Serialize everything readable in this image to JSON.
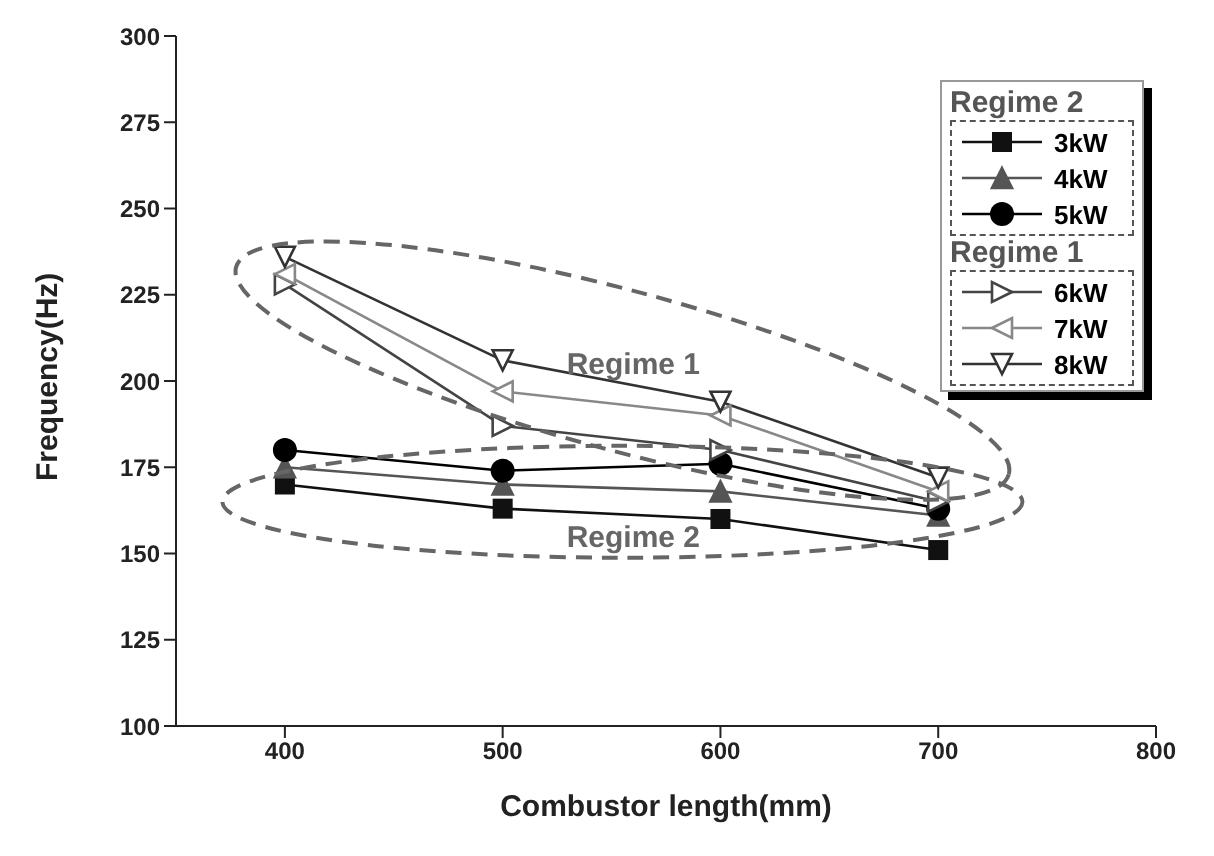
{
  "chart_data": {
    "type": "line",
    "xlabel": "Combustor length(mm)",
    "ylabel": "Frequency(Hz)",
    "x": [
      400,
      500,
      600,
      700
    ],
    "xlim": [
      350,
      800
    ],
    "xticks": [
      400,
      500,
      600,
      700,
      800
    ],
    "ylim": [
      100,
      300
    ],
    "yticks": [
      100,
      125,
      150,
      175,
      200,
      225,
      250,
      275,
      300
    ],
    "series": [
      {
        "name": "3kW",
        "color": "#111111",
        "marker": "square",
        "values": [
          170,
          163,
          160,
          151
        ]
      },
      {
        "name": "4kW",
        "color": "#555555",
        "marker": "triangle",
        "values": [
          175,
          170,
          168,
          161
        ]
      },
      {
        "name": "5kW",
        "color": "#000000",
        "marker": "circle",
        "values": [
          180,
          174,
          176,
          163
        ]
      },
      {
        "name": "6kW",
        "color": "#444444",
        "marker": "triangle",
        "values": [
          228,
          187,
          180,
          165
        ]
      },
      {
        "name": "7kW",
        "color": "#888888",
        "marker": "triangle",
        "values": [
          231,
          197,
          190,
          168
        ]
      },
      {
        "name": "8kW",
        "color": "#333333",
        "marker": "triangle",
        "values": [
          236,
          206,
          194,
          172
        ]
      }
    ],
    "annotations": [
      "Regime 1",
      "Regime 2"
    ],
    "legend": "top right",
    "line_style": "solid"
  }
}
